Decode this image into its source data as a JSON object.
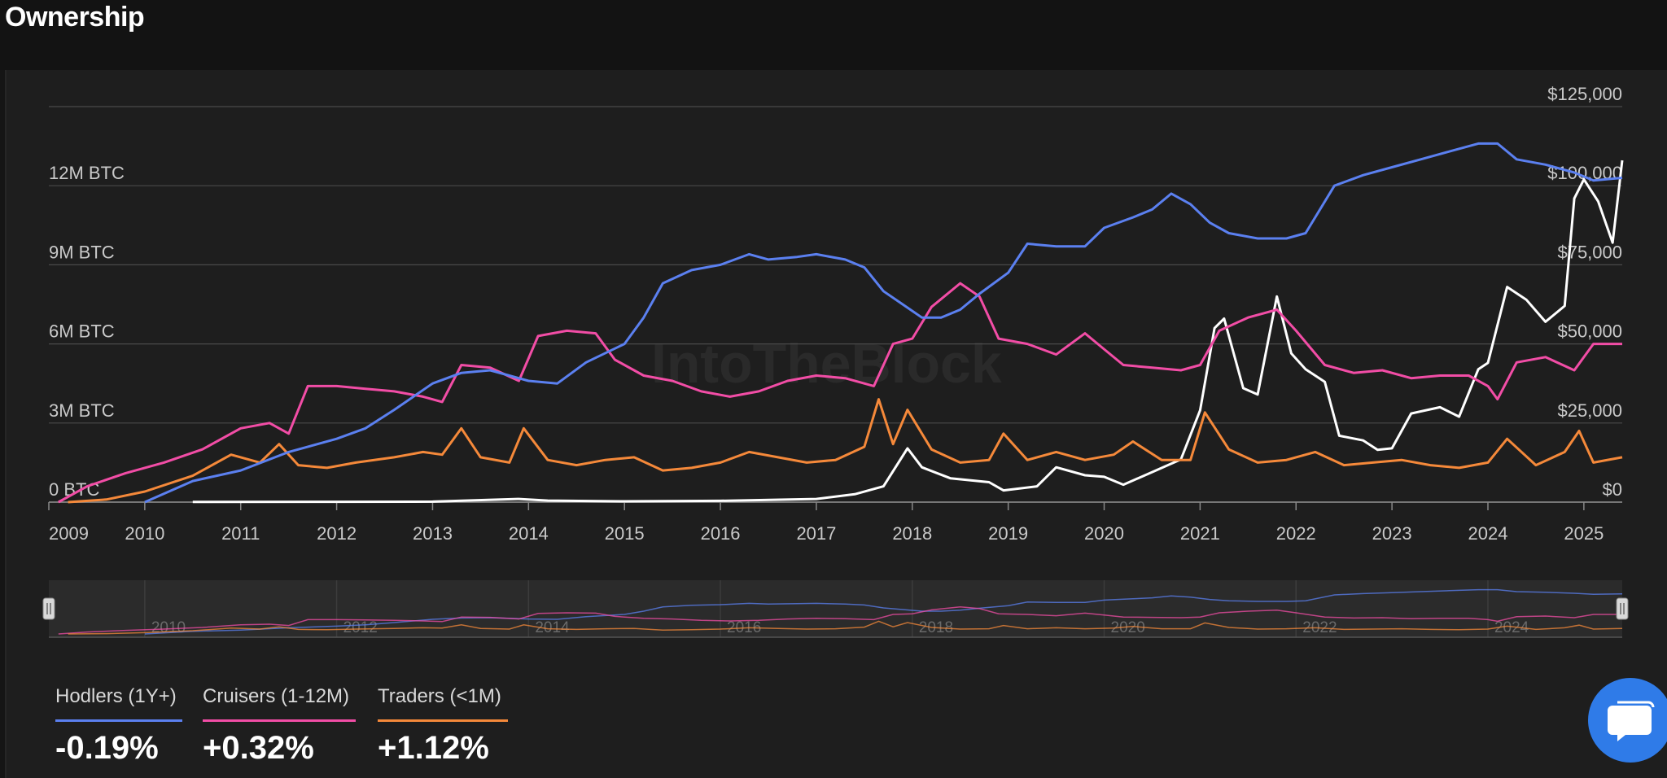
{
  "page": {
    "title": "Ownership"
  },
  "colors": {
    "hodlers": "#5b80f0",
    "cruisers": "#f24da6",
    "traders": "#f5893a",
    "price": "#ffffff",
    "grid": "#4a4a4a",
    "chat": "#2f7be8"
  },
  "watermark": "IntoTheBlock",
  "chart_data": {
    "type": "line",
    "x_range": [
      2009.0,
      2025.4
    ],
    "x_ticks": [
      "2009",
      "2010",
      "2011",
      "2012",
      "2013",
      "2014",
      "2015",
      "2016",
      "2017",
      "2018",
      "2019",
      "2020",
      "2021",
      "2022",
      "2023",
      "2024",
      "2025"
    ],
    "left_axis": {
      "ticks": [
        "0 BTC",
        "3M BTC",
        "6M BTC",
        "9M BTC",
        "12M BTC"
      ],
      "values": [
        0,
        3,
        6,
        9,
        12
      ],
      "unit": "M BTC",
      "range": [
        0,
        15
      ]
    },
    "right_axis": {
      "ticks": [
        "$0",
        "$25,000",
        "$50,000",
        "$75,000",
        "$100,000",
        "$125,000"
      ],
      "values": [
        0,
        25000,
        50000,
        75000,
        100000,
        125000
      ],
      "range": [
        0,
        125000
      ]
    },
    "navigator_ticks": [
      "2010",
      "2012",
      "2014",
      "2016",
      "2018",
      "2020",
      "2022",
      "2024"
    ],
    "series": [
      {
        "name": "Hodlers (1Y+)",
        "axis": "left",
        "color": "#5b80f0",
        "points": [
          [
            2010.0,
            0.0
          ],
          [
            2010.5,
            0.8
          ],
          [
            2011.0,
            1.2
          ],
          [
            2011.5,
            1.9
          ],
          [
            2012.0,
            2.4
          ],
          [
            2012.3,
            2.8
          ],
          [
            2012.6,
            3.5
          ],
          [
            2013.0,
            4.5
          ],
          [
            2013.3,
            4.9
          ],
          [
            2013.6,
            5.0
          ],
          [
            2014.0,
            4.6
          ],
          [
            2014.3,
            4.5
          ],
          [
            2014.6,
            5.3
          ],
          [
            2015.0,
            6.0
          ],
          [
            2015.2,
            7.0
          ],
          [
            2015.4,
            8.3
          ],
          [
            2015.7,
            8.8
          ],
          [
            2016.0,
            9.0
          ],
          [
            2016.3,
            9.4
          ],
          [
            2016.5,
            9.2
          ],
          [
            2016.8,
            9.3
          ],
          [
            2017.0,
            9.4
          ],
          [
            2017.3,
            9.2
          ],
          [
            2017.5,
            8.9
          ],
          [
            2017.7,
            8.0
          ],
          [
            2017.9,
            7.5
          ],
          [
            2018.1,
            7.0
          ],
          [
            2018.3,
            7.0
          ],
          [
            2018.5,
            7.3
          ],
          [
            2018.7,
            7.9
          ],
          [
            2019.0,
            8.7
          ],
          [
            2019.2,
            9.8
          ],
          [
            2019.5,
            9.7
          ],
          [
            2019.8,
            9.7
          ],
          [
            2020.0,
            10.4
          ],
          [
            2020.3,
            10.8
          ],
          [
            2020.5,
            11.1
          ],
          [
            2020.7,
            11.7
          ],
          [
            2020.9,
            11.3
          ],
          [
            2021.1,
            10.6
          ],
          [
            2021.3,
            10.2
          ],
          [
            2021.6,
            10.0
          ],
          [
            2021.9,
            10.0
          ],
          [
            2022.1,
            10.2
          ],
          [
            2022.4,
            12.0
          ],
          [
            2022.7,
            12.4
          ],
          [
            2023.0,
            12.7
          ],
          [
            2023.3,
            13.0
          ],
          [
            2023.6,
            13.3
          ],
          [
            2023.9,
            13.6
          ],
          [
            2024.1,
            13.6
          ],
          [
            2024.3,
            13.0
          ],
          [
            2024.6,
            12.8
          ],
          [
            2024.9,
            12.5
          ],
          [
            2025.1,
            12.2
          ],
          [
            2025.4,
            12.3
          ]
        ]
      },
      {
        "name": "Cruisers (1-12M)",
        "axis": "left",
        "color": "#f24da6",
        "points": [
          [
            2009.1,
            0.0
          ],
          [
            2009.4,
            0.6
          ],
          [
            2009.8,
            1.1
          ],
          [
            2010.2,
            1.5
          ],
          [
            2010.6,
            2.0
          ],
          [
            2011.0,
            2.8
          ],
          [
            2011.3,
            3.0
          ],
          [
            2011.5,
            2.6
          ],
          [
            2011.7,
            4.4
          ],
          [
            2012.0,
            4.4
          ],
          [
            2012.3,
            4.3
          ],
          [
            2012.6,
            4.2
          ],
          [
            2012.9,
            4.0
          ],
          [
            2013.1,
            3.8
          ],
          [
            2013.3,
            5.2
          ],
          [
            2013.6,
            5.1
          ],
          [
            2013.9,
            4.6
          ],
          [
            2014.1,
            6.3
          ],
          [
            2014.4,
            6.5
          ],
          [
            2014.7,
            6.4
          ],
          [
            2014.9,
            5.4
          ],
          [
            2015.2,
            4.8
          ],
          [
            2015.5,
            4.6
          ],
          [
            2015.8,
            4.2
          ],
          [
            2016.1,
            4.0
          ],
          [
            2016.4,
            4.2
          ],
          [
            2016.7,
            4.6
          ],
          [
            2017.0,
            4.8
          ],
          [
            2017.3,
            4.7
          ],
          [
            2017.6,
            4.4
          ],
          [
            2017.8,
            6.0
          ],
          [
            2018.0,
            6.2
          ],
          [
            2018.2,
            7.4
          ],
          [
            2018.5,
            8.3
          ],
          [
            2018.7,
            7.8
          ],
          [
            2018.9,
            6.2
          ],
          [
            2019.2,
            6.0
          ],
          [
            2019.5,
            5.6
          ],
          [
            2019.8,
            6.4
          ],
          [
            2020.0,
            5.8
          ],
          [
            2020.2,
            5.2
          ],
          [
            2020.5,
            5.1
          ],
          [
            2020.8,
            5.0
          ],
          [
            2021.0,
            5.2
          ],
          [
            2021.2,
            6.5
          ],
          [
            2021.5,
            7.0
          ],
          [
            2021.8,
            7.3
          ],
          [
            2022.0,
            6.5
          ],
          [
            2022.3,
            5.2
          ],
          [
            2022.6,
            4.9
          ],
          [
            2022.9,
            5.0
          ],
          [
            2023.2,
            4.7
          ],
          [
            2023.5,
            4.8
          ],
          [
            2023.8,
            4.8
          ],
          [
            2024.0,
            4.4
          ],
          [
            2024.1,
            3.9
          ],
          [
            2024.3,
            5.3
          ],
          [
            2024.6,
            5.5
          ],
          [
            2024.9,
            5.0
          ],
          [
            2025.1,
            6.0
          ],
          [
            2025.4,
            6.0
          ]
        ]
      },
      {
        "name": "Traders (<1M)",
        "axis": "left",
        "color": "#f5893a",
        "points": [
          [
            2009.2,
            0.0
          ],
          [
            2009.6,
            0.1
          ],
          [
            2010.0,
            0.4
          ],
          [
            2010.5,
            1.0
          ],
          [
            2010.9,
            1.8
          ],
          [
            2011.2,
            1.5
          ],
          [
            2011.4,
            2.2
          ],
          [
            2011.6,
            1.4
          ],
          [
            2011.9,
            1.3
          ],
          [
            2012.2,
            1.5
          ],
          [
            2012.6,
            1.7
          ],
          [
            2012.9,
            1.9
          ],
          [
            2013.1,
            1.8
          ],
          [
            2013.3,
            2.8
          ],
          [
            2013.5,
            1.7
          ],
          [
            2013.8,
            1.5
          ],
          [
            2013.95,
            2.8
          ],
          [
            2014.2,
            1.6
          ],
          [
            2014.5,
            1.4
          ],
          [
            2014.8,
            1.6
          ],
          [
            2015.1,
            1.7
          ],
          [
            2015.4,
            1.2
          ],
          [
            2015.7,
            1.3
          ],
          [
            2016.0,
            1.5
          ],
          [
            2016.3,
            1.9
          ],
          [
            2016.6,
            1.7
          ],
          [
            2016.9,
            1.5
          ],
          [
            2017.2,
            1.6
          ],
          [
            2017.5,
            2.1
          ],
          [
            2017.65,
            3.9
          ],
          [
            2017.8,
            2.2
          ],
          [
            2017.95,
            3.5
          ],
          [
            2018.2,
            2.0
          ],
          [
            2018.5,
            1.5
          ],
          [
            2018.8,
            1.6
          ],
          [
            2018.95,
            2.6
          ],
          [
            2019.2,
            1.6
          ],
          [
            2019.5,
            1.9
          ],
          [
            2019.8,
            1.6
          ],
          [
            2020.1,
            1.8
          ],
          [
            2020.3,
            2.3
          ],
          [
            2020.6,
            1.6
          ],
          [
            2020.9,
            1.6
          ],
          [
            2021.05,
            3.4
          ],
          [
            2021.3,
            2.0
          ],
          [
            2021.6,
            1.5
          ],
          [
            2021.9,
            1.6
          ],
          [
            2022.2,
            1.9
          ],
          [
            2022.5,
            1.4
          ],
          [
            2022.8,
            1.5
          ],
          [
            2023.1,
            1.6
          ],
          [
            2023.4,
            1.4
          ],
          [
            2023.7,
            1.3
          ],
          [
            2024.0,
            1.5
          ],
          [
            2024.2,
            2.4
          ],
          [
            2024.5,
            1.4
          ],
          [
            2024.8,
            1.9
          ],
          [
            2024.95,
            2.7
          ],
          [
            2025.1,
            1.5
          ],
          [
            2025.4,
            1.7
          ]
        ]
      },
      {
        "name": "Price",
        "axis": "right",
        "color": "#ffffff",
        "points": [
          [
            2010.5,
            50
          ],
          [
            2012.0,
            100
          ],
          [
            2013.0,
            150
          ],
          [
            2013.9,
            1000
          ],
          [
            2014.2,
            500
          ],
          [
            2015.0,
            250
          ],
          [
            2016.0,
            420
          ],
          [
            2017.0,
            1000
          ],
          [
            2017.4,
            2500
          ],
          [
            2017.7,
            5000
          ],
          [
            2017.95,
            17000
          ],
          [
            2018.1,
            11000
          ],
          [
            2018.4,
            7500
          ],
          [
            2018.8,
            6300
          ],
          [
            2018.95,
            3700
          ],
          [
            2019.3,
            5000
          ],
          [
            2019.5,
            11000
          ],
          [
            2019.8,
            8500
          ],
          [
            2020.0,
            8000
          ],
          [
            2020.2,
            5500
          ],
          [
            2020.5,
            9500
          ],
          [
            2020.8,
            13500
          ],
          [
            2021.0,
            29000
          ],
          [
            2021.15,
            55000
          ],
          [
            2021.25,
            58000
          ],
          [
            2021.45,
            36000
          ],
          [
            2021.6,
            34000
          ],
          [
            2021.8,
            65000
          ],
          [
            2021.95,
            47000
          ],
          [
            2022.1,
            42000
          ],
          [
            2022.3,
            38000
          ],
          [
            2022.45,
            21000
          ],
          [
            2022.7,
            19500
          ],
          [
            2022.85,
            16500
          ],
          [
            2023.0,
            17000
          ],
          [
            2023.2,
            28000
          ],
          [
            2023.5,
            30000
          ],
          [
            2023.7,
            27000
          ],
          [
            2023.9,
            42000
          ],
          [
            2024.0,
            44000
          ],
          [
            2024.2,
            68000
          ],
          [
            2024.4,
            64000
          ],
          [
            2024.6,
            57000
          ],
          [
            2024.8,
            62000
          ],
          [
            2024.9,
            96000
          ],
          [
            2025.0,
            102000
          ],
          [
            2025.15,
            95000
          ],
          [
            2025.3,
            82000
          ],
          [
            2025.4,
            108000
          ]
        ]
      }
    ]
  },
  "legend": [
    {
      "name": "Hodlers (1Y+)",
      "value": "-0.19%",
      "color": "#5b80f0"
    },
    {
      "name": "Cruisers (1-12M)",
      "value": "+0.32%",
      "color": "#f24da6"
    },
    {
      "name": "Traders (<1M)",
      "value": "+1.12%",
      "color": "#f5893a"
    }
  ]
}
